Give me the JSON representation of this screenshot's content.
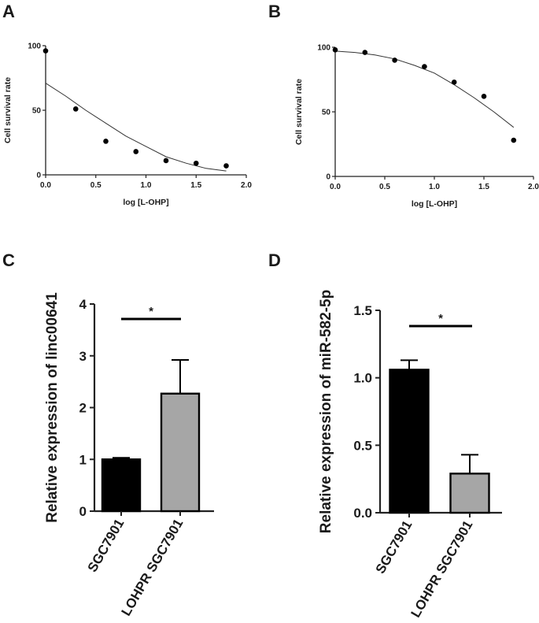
{
  "chart_data": [
    {
      "panel": "A",
      "type": "scatter",
      "xlabel": "log [L-OHP]",
      "ylabel": "Cell survival rate",
      "xlim": [
        0,
        2.0
      ],
      "ylim": [
        0,
        100
      ],
      "xticks": [
        "0.0",
        "0.5",
        "1.0",
        "1.5",
        "2.0"
      ],
      "yticks": [
        "0",
        "50",
        "100"
      ],
      "points": {
        "x": [
          0,
          0.3,
          0.6,
          0.9,
          1.2,
          1.5,
          1.8
        ],
        "y": [
          96,
          51,
          26,
          18,
          11,
          9,
          7
        ]
      },
      "fit": {
        "x": [
          0,
          0.2,
          0.4,
          0.6,
          0.8,
          1.0,
          1.2,
          1.4,
          1.6,
          1.8
        ],
        "y": [
          71,
          61,
          50,
          40,
          30,
          22,
          14,
          9,
          5,
          3
        ]
      }
    },
    {
      "panel": "B",
      "type": "scatter",
      "xlabel": "log [L-OHP]",
      "ylabel": "Cell survival rate",
      "xlim": [
        0,
        2.0
      ],
      "ylim": [
        0,
        100
      ],
      "xticks": [
        "0.0",
        "0.5",
        "1.0",
        "1.5",
        "2.0"
      ],
      "yticks": [
        "0",
        "50",
        "100"
      ],
      "points": {
        "x": [
          0,
          0.3,
          0.6,
          0.9,
          1.2,
          1.5,
          1.8
        ],
        "y": [
          98,
          96,
          90,
          85,
          73,
          62,
          28
        ]
      },
      "fit": {
        "x": [
          0,
          0.2,
          0.4,
          0.6,
          0.8,
          1.0,
          1.2,
          1.4,
          1.6,
          1.8
        ],
        "y": [
          97,
          96,
          94,
          91,
          86,
          80,
          71,
          61,
          50,
          38
        ]
      }
    },
    {
      "panel": "C",
      "type": "bar",
      "ylabel": "Relative expression of linc00641",
      "ylim": [
        0,
        4
      ],
      "yticks": [
        "0",
        "1",
        "2",
        "3",
        "4"
      ],
      "categories": [
        "SGC7901",
        "LOHPR SGC7901"
      ],
      "values": [
        1.0,
        2.27
      ],
      "errors": [
        0.03,
        0.65
      ],
      "colors": [
        "#000000",
        "#a6a6a6"
      ],
      "significance": "*"
    },
    {
      "panel": "D",
      "type": "bar",
      "ylabel": "Relative expression of miR-582-5p",
      "ylim": [
        0,
        1.5
      ],
      "yticks": [
        "0.0",
        "0.5",
        "1.0",
        "1.5"
      ],
      "categories": [
        "SGC7901",
        "LOHPR SGC7901"
      ],
      "values": [
        1.06,
        0.29
      ],
      "errors": [
        0.07,
        0.14
      ],
      "colors": [
        "#000000",
        "#a6a6a6"
      ],
      "significance": "*"
    }
  ]
}
